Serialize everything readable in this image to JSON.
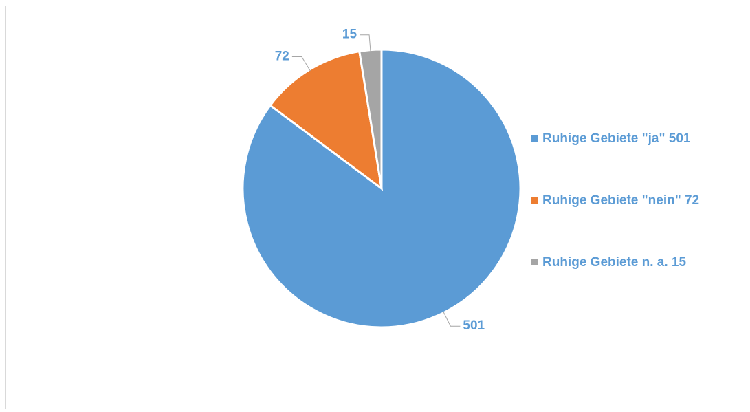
{
  "chart_data": {
    "type": "pie",
    "categories": [
      "Ruhige Gebiete \"ja\" 501",
      "Ruhige Gebiete \"nein\" 72",
      "Ruhige Gebiete n. a. 15"
    ],
    "values": [
      501,
      72,
      15
    ],
    "colors": [
      "#5b9bd5",
      "#ed7d31",
      "#a5a5a5"
    ],
    "legend": "right"
  }
}
